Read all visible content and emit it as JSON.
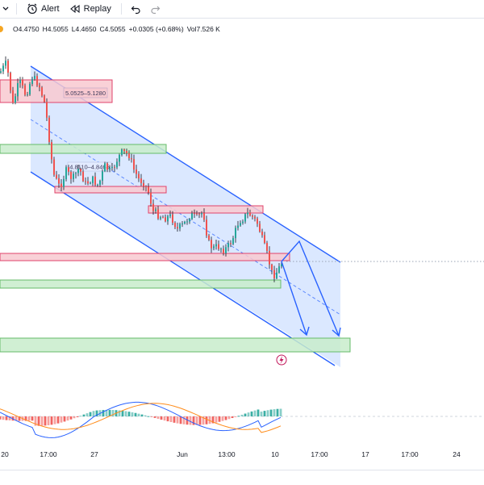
{
  "toolbar": {
    "alert_label": "Alert",
    "replay_label": "Replay",
    "icons": [
      "alert-clock-icon",
      "replay-rewind-icon",
      "undo-icon",
      "redo-icon"
    ]
  },
  "legend": {
    "open": "O4.4750",
    "high": "H4.5055",
    "low": "L4.4650",
    "close": "C4.5055",
    "change": "+0.0305 (+0.68%)",
    "volume": "Vol7.526 K",
    "dot_color": "#f5a623"
  },
  "annotations": {
    "top_zone_label": "5.0525–5.1280",
    "mid_zone_label": "4.8110–4.8465"
  },
  "x_axis": {
    "labels": [
      "20",
      "17:00",
      "27",
      "Jun",
      "13:00",
      "10",
      "17:00",
      "17",
      "17:00",
      "24"
    ]
  },
  "colors": {
    "channel_fill": "#cfe0ff",
    "channel_line": "#2962ff",
    "resistance_fill": "#f8c9d0",
    "resistance_border": "#e0436b",
    "support_fill": "#c8eccb",
    "support_border": "#66bb6a",
    "bull": "#26a69a",
    "bear": "#ef5350"
  }
}
